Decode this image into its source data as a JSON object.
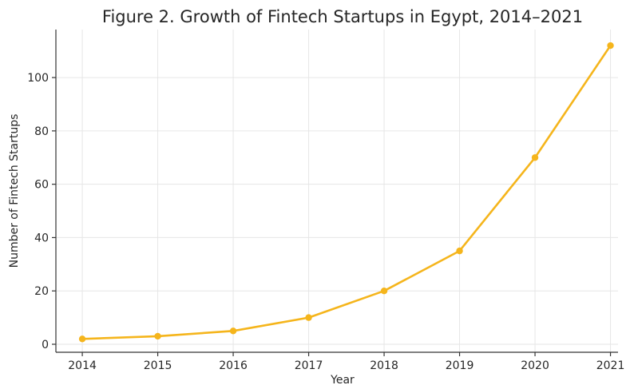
{
  "chart_data": {
    "type": "line",
    "title": "Figure 2. Growth of Fintech Startups in Egypt, 2014–2021",
    "xlabel": "Year",
    "ylabel": "Number of Fintech Startups",
    "x": [
      2014,
      2015,
      2016,
      2017,
      2018,
      2019,
      2020,
      2021
    ],
    "x_tick_labels": [
      "2014",
      "2015",
      "2016",
      "2017",
      "2018",
      "2019",
      "2020",
      "2021"
    ],
    "y_ticks": [
      0,
      20,
      40,
      60,
      80,
      100
    ],
    "y_tick_labels": [
      "0",
      "20",
      "40",
      "60",
      "80",
      "100"
    ],
    "series": [
      {
        "values": [
          2,
          3,
          5,
          10,
          20,
          35,
          70,
          112
        ],
        "color": "#f5b51c"
      }
    ],
    "xlim": [
      2013.65,
      2021.1
    ],
    "ylim": [
      -3,
      118
    ],
    "grid": true,
    "legend": "none",
    "marker": "circle"
  }
}
